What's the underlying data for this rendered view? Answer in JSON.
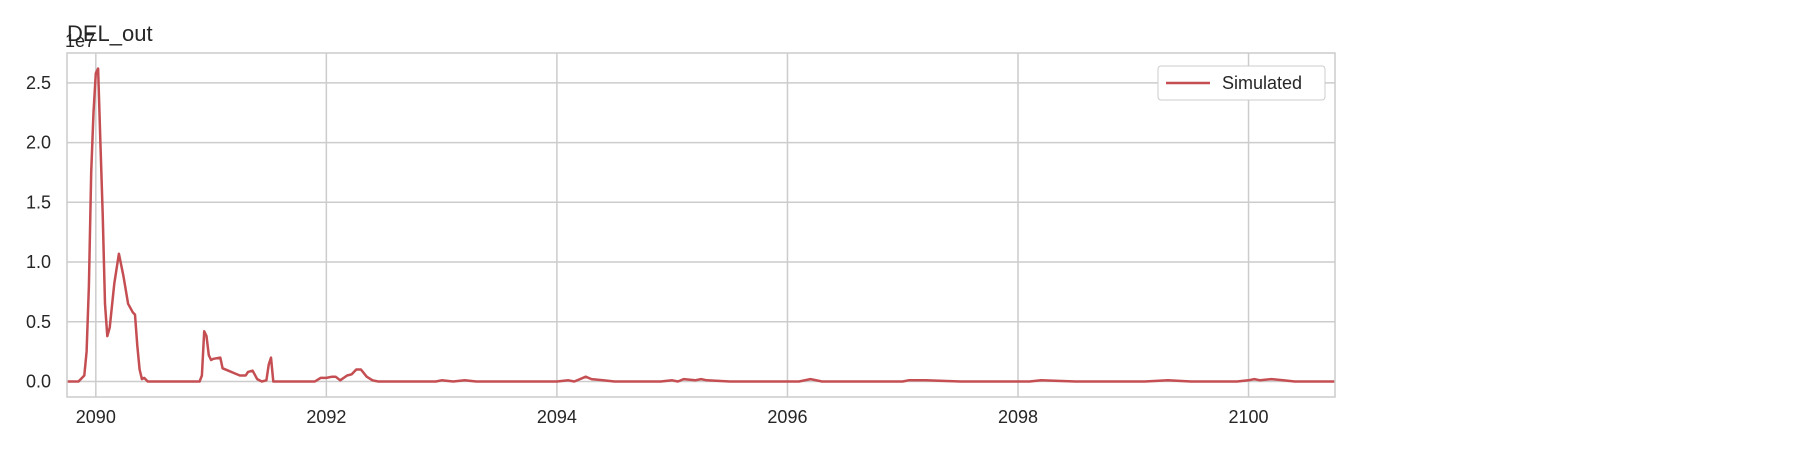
{
  "chart_data": {
    "type": "line",
    "title": "DEL_out",
    "xlabel": "",
    "ylabel": "",
    "y_offset_label": "1e7",
    "y_scale": 10000000,
    "xlim": [
      2089.75,
      2100.75
    ],
    "ylim": [
      -0.13,
      2.75
    ],
    "x_ticks": [
      2090,
      2092,
      2094,
      2096,
      2098,
      2100
    ],
    "x_tick_labels": [
      "2090",
      "2092",
      "2094",
      "2096",
      "2098",
      "2100"
    ],
    "y_ticks": [
      0.0,
      0.5,
      1.0,
      1.5,
      2.0,
      2.5
    ],
    "y_tick_labels": [
      "0.0",
      "0.5",
      "1.0",
      "1.5",
      "2.0",
      "2.5"
    ],
    "grid": true,
    "legend_position": "top-right",
    "series": [
      {
        "name": "Simulated",
        "color": "#c44e52",
        "x": [
          2089.75,
          2089.85,
          2089.9,
          2089.92,
          2089.94,
          2089.96,
          2089.98,
          2090.0,
          2090.02,
          2090.04,
          2090.06,
          2090.08,
          2090.1,
          2090.12,
          2090.16,
          2090.2,
          2090.24,
          2090.28,
          2090.32,
          2090.34,
          2090.36,
          2090.38,
          2090.4,
          2090.42,
          2090.45,
          2090.5,
          2090.9,
          2090.92,
          2090.94,
          2090.96,
          2090.98,
          2091.0,
          2091.02,
          2091.08,
          2091.1,
          2091.15,
          2091.2,
          2091.25,
          2091.3,
          2091.32,
          2091.36,
          2091.4,
          2091.44,
          2091.48,
          2091.5,
          2091.52,
          2091.54,
          2091.9,
          2091.95,
          2092.0,
          2092.05,
          2092.08,
          2092.12,
          2092.18,
          2092.22,
          2092.26,
          2092.3,
          2092.35,
          2092.4,
          2092.45,
          2092.5,
          2092.95,
          2093.0,
          2093.1,
          2093.2,
          2093.3,
          2093.5,
          2094.0,
          2094.1,
          2094.15,
          2094.2,
          2094.25,
          2094.3,
          2094.4,
          2094.5,
          2094.9,
          2095.0,
          2095.05,
          2095.1,
          2095.2,
          2095.25,
          2095.3,
          2095.5,
          2096.1,
          2096.2,
          2096.3,
          2096.5,
          2097.0,
          2097.05,
          2097.1,
          2097.2,
          2097.5,
          2097.8,
          2098.1,
          2098.2,
          2098.5,
          2099.1,
          2099.3,
          2099.5,
          2099.9,
          2100.0,
          2100.05,
          2100.1,
          2100.2,
          2100.3,
          2100.4,
          2100.5,
          2100.75
        ],
        "y": [
          0.0,
          0.0,
          0.05,
          0.25,
          0.8,
          1.75,
          2.25,
          2.58,
          2.62,
          2.0,
          1.4,
          0.65,
          0.38,
          0.45,
          0.82,
          1.07,
          0.88,
          0.65,
          0.58,
          0.56,
          0.3,
          0.1,
          0.02,
          0.03,
          0.0,
          0.0,
          0.0,
          0.05,
          0.42,
          0.38,
          0.22,
          0.18,
          0.19,
          0.2,
          0.11,
          0.09,
          0.07,
          0.05,
          0.05,
          0.08,
          0.09,
          0.02,
          0.0,
          0.01,
          0.14,
          0.2,
          0.0,
          0.0,
          0.03,
          0.03,
          0.04,
          0.04,
          0.01,
          0.05,
          0.06,
          0.1,
          0.1,
          0.04,
          0.01,
          0.0,
          0.0,
          0.0,
          0.01,
          0.0,
          0.01,
          0.0,
          0.0,
          0.0,
          0.01,
          0.0,
          0.02,
          0.04,
          0.02,
          0.01,
          0.0,
          0.0,
          0.01,
          0.0,
          0.02,
          0.01,
          0.02,
          0.01,
          0.0,
          0.0,
          0.02,
          0.0,
          0.0,
          0.0,
          0.01,
          0.01,
          0.01,
          0.0,
          0.0,
          0.0,
          0.01,
          0.0,
          0.0,
          0.01,
          0.0,
          0.0,
          0.01,
          0.02,
          0.01,
          0.02,
          0.01,
          0.0,
          0.0,
          0.0
        ]
      }
    ]
  }
}
